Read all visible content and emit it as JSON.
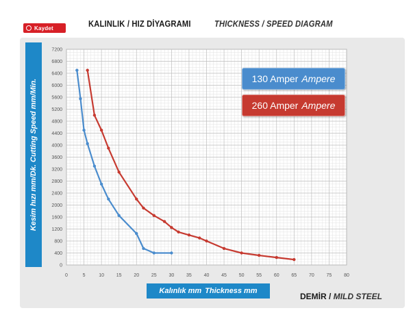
{
  "brand": {
    "name": "Kaydet",
    "color": "#d72027"
  },
  "header": {
    "title_tr": "KALINLIK / HIZ DİYAGRAMI",
    "title_en": "THICKNESS / SPEED DIAGRAM"
  },
  "axes": {
    "x_label_tr": "Kalınlık mm",
    "x_label_en": "Thickness mm",
    "y_label": "Kesim hızı mm/Dk. Cutting Speed mm/Min."
  },
  "material": {
    "tr": "DEMİR / ",
    "en": "MILD STEEL"
  },
  "legend": [
    {
      "unit": "130 Amper",
      "label": "Ampere",
      "color": "#4a8ccd"
    },
    {
      "unit": "260 Amper",
      "label": "Ampere",
      "color": "#c63a30"
    }
  ],
  "chart_data": {
    "type": "line",
    "xlim": [
      0,
      80
    ],
    "ylim": [
      0,
      7200
    ],
    "x_ticks": [
      0,
      5,
      10,
      15,
      20,
      25,
      30,
      35,
      40,
      45,
      50,
      55,
      60,
      65,
      70,
      75,
      80
    ],
    "y_ticks": [
      0,
      400,
      800,
      1200,
      1600,
      2000,
      2400,
      2800,
      3200,
      3600,
      4000,
      4400,
      4800,
      5200,
      5600,
      6000,
      6400,
      6800,
      7200
    ],
    "grid": true,
    "legend_position": "top-right",
    "series": [
      {
        "name": "130 Amper Ampere",
        "color": "#4a8ccd",
        "points": [
          [
            3,
            6500
          ],
          [
            4,
            5550
          ],
          [
            5,
            4500
          ],
          [
            6,
            4050
          ],
          [
            8,
            3300
          ],
          [
            10,
            2700
          ],
          [
            12,
            2200
          ],
          [
            15,
            1650
          ],
          [
            20,
            1050
          ],
          [
            22,
            550
          ],
          [
            25,
            400
          ],
          [
            30,
            400
          ]
        ]
      },
      {
        "name": "260 Amper Ampere",
        "color": "#c63a30",
        "points": [
          [
            6,
            6500
          ],
          [
            8,
            5000
          ],
          [
            10,
            4500
          ],
          [
            12,
            3900
          ],
          [
            15,
            3100
          ],
          [
            20,
            2200
          ],
          [
            22,
            1900
          ],
          [
            25,
            1650
          ],
          [
            28,
            1450
          ],
          [
            30,
            1250
          ],
          [
            32,
            1100
          ],
          [
            35,
            1000
          ],
          [
            38,
            900
          ],
          [
            40,
            800
          ],
          [
            45,
            550
          ],
          [
            50,
            400
          ],
          [
            55,
            320
          ],
          [
            60,
            250
          ],
          [
            65,
            180
          ]
        ]
      }
    ]
  }
}
